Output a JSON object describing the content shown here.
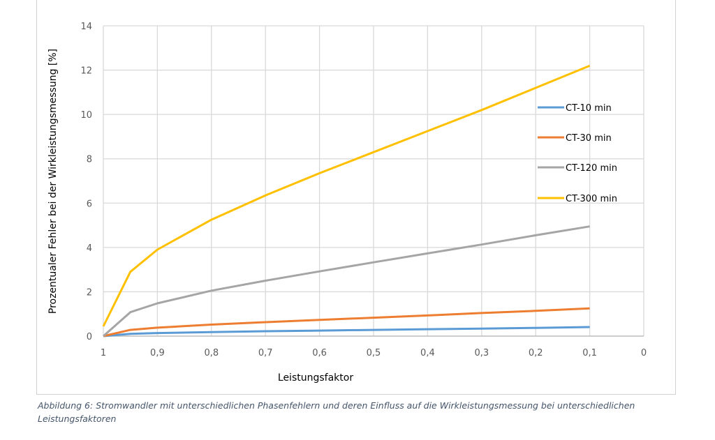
{
  "chart_data": {
    "type": "line",
    "title": "",
    "xlabel": "Leistungsfaktor",
    "ylabel": "Prozentualer Fehler bei der Wirkleistungsmessung [%]",
    "x": [
      1,
      0.95,
      0.9,
      0.8,
      0.7,
      0.6,
      0.5,
      0.4,
      0.3,
      0.2,
      0.1
    ],
    "xlim": [
      1,
      0
    ],
    "ylim": [
      0,
      14
    ],
    "x_ticks": [
      "1",
      "0,9",
      "0,8",
      "0,7",
      "0,6",
      "0,5",
      "0,4",
      "0,3",
      "0,2",
      "0,1",
      "0"
    ],
    "y_ticks": [
      "0",
      "2",
      "4",
      "6",
      "8",
      "10",
      "12",
      "14"
    ],
    "grid": true,
    "legend_position": "right-inside",
    "series": [
      {
        "name": "CT-10 min",
        "color": "#5b9bd5",
        "values": [
          0,
          0.1,
          0.14,
          0.18,
          0.22,
          0.25,
          0.28,
          0.31,
          0.34,
          0.37,
          0.41
        ]
      },
      {
        "name": "CT-30 min",
        "color": "#ed7d31",
        "values": [
          0,
          0.28,
          0.38,
          0.52,
          0.63,
          0.73,
          0.83,
          0.93,
          1.04,
          1.14,
          1.25
        ]
      },
      {
        "name": "CT-120 min",
        "color": "#a5a5a5",
        "values": [
          0,
          1.08,
          1.48,
          2.05,
          2.5,
          2.92,
          3.33,
          3.73,
          4.13,
          4.55,
          4.95
        ]
      },
      {
        "name": "CT-300 min",
        "color": "#ffc000",
        "values": [
          0.44,
          2.9,
          3.9,
          5.25,
          6.35,
          7.35,
          8.3,
          9.25,
          10.2,
          11.2,
          12.2
        ]
      }
    ]
  },
  "caption": {
    "text": "Abbildung 6: Stromwandler mit unterschiedlichen Phasenfehlern und deren Einfluss auf die Wirkleistungsmessung bei unterschiedlichen Leistungsfaktoren"
  }
}
